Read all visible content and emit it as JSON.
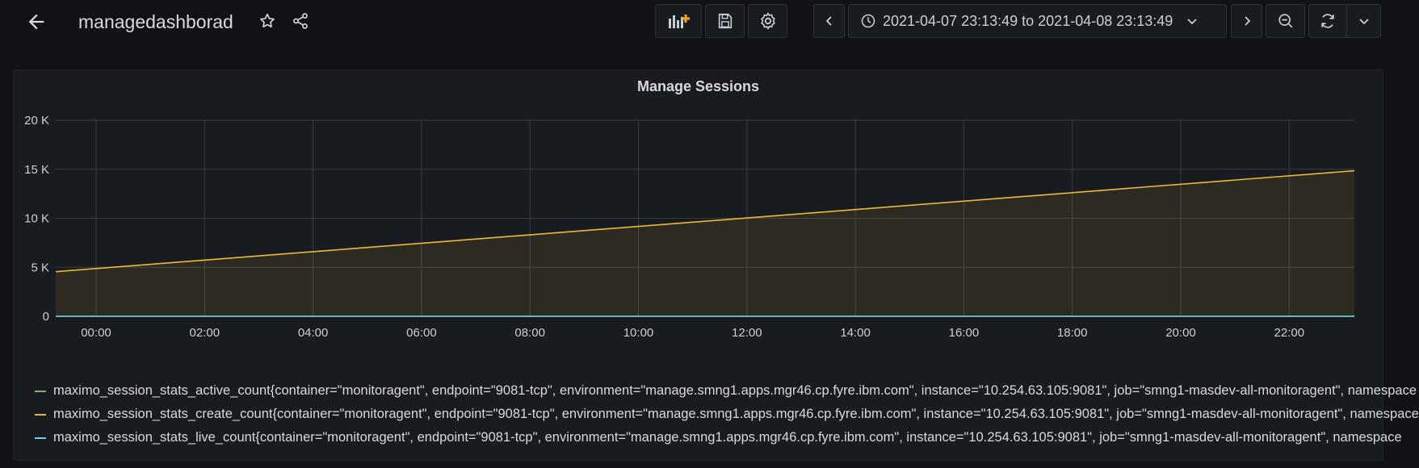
{
  "header": {
    "title": "managedashborad"
  },
  "time_picker": {
    "range_text": "2021-04-07 23:13:49 to 2021-04-08 23:13:49"
  },
  "panel": {
    "title": "Manage Sessions"
  },
  "colors": {
    "background": "#111217",
    "panel": "#181b1f",
    "grid": "#3a3d44",
    "axis_text": "#c7d0d9",
    "active": "#7eb26d",
    "create": "#eab839",
    "live": "#6ed0e0"
  },
  "chart_data": {
    "type": "area",
    "title": "Manage Sessions",
    "x_ticks": [
      "00:00",
      "02:00",
      "04:00",
      "06:00",
      "08:00",
      "10:00",
      "12:00",
      "14:00",
      "16:00",
      "18:00",
      "20:00",
      "22:00"
    ],
    "y_ticks": [
      "0",
      "5 K",
      "10 K",
      "15 K",
      "20 K"
    ],
    "ylim": [
      0,
      20000
    ],
    "xlim": [
      "2021-04-07 23:13:49",
      "2021-04-08 23:13:49"
    ],
    "grid": true,
    "legend_position": "bottom",
    "series": [
      {
        "name": "maximo_session_stats_active_count{container=\"monitoragent\", endpoint=\"9081-tcp\", environment=\"manage.smng1.apps.mgr46.cp.fyre.ibm.com\", instance=\"10.254.63.105:9081\", job=\"smng1-masdev-all-monitoragent\", namespace",
        "color": "#7eb26d",
        "x": [
          "2021-04-07 23:13:49",
          "2021-04-08 23:13:49"
        ],
        "values": [
          0,
          0
        ]
      },
      {
        "name": "maximo_session_stats_create_count{container=\"monitoragent\", endpoint=\"9081-tcp\", environment=\"manage.smng1.apps.mgr46.cp.fyre.ibm.com\", instance=\"10.254.63.105:9081\", job=\"smng1-masdev-all-monitoragent\", namespace",
        "color": "#eab839",
        "x": [
          "2021-04-07 23:13:49",
          "2021-04-08 23:13:49"
        ],
        "values": [
          4550,
          14850
        ]
      },
      {
        "name": "maximo_session_stats_live_count{container=\"monitoragent\", endpoint=\"9081-tcp\", environment=\"manage.smng1.apps.mgr46.cp.fyre.ibm.com\", instance=\"10.254.63.105:9081\", job=\"smng1-masdev-all-monitoragent\", namespace",
        "color": "#6ed0e0",
        "x": [
          "2021-04-07 23:13:49",
          "2021-04-08 23:13:49"
        ],
        "values": [
          0,
          0
        ]
      }
    ]
  }
}
